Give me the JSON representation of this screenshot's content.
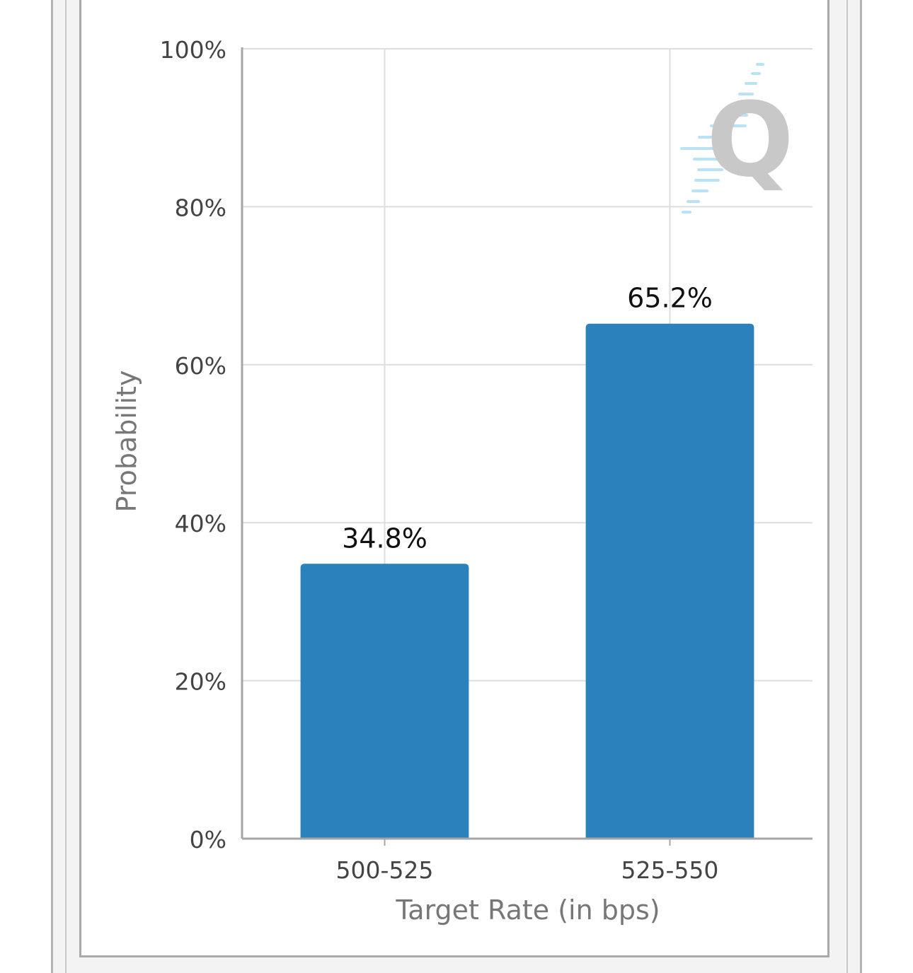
{
  "chart_data": {
    "type": "bar",
    "title": "",
    "xlabel": "Target Rate (in bps)",
    "ylabel": "Probability",
    "categories": [
      "500-525",
      "525-550"
    ],
    "values": [
      34.8,
      65.2
    ],
    "value_labels": [
      "34.8%",
      "65.2%"
    ],
    "ylim": [
      0,
      100
    ],
    "yticks": [
      0,
      20,
      40,
      60,
      80,
      100
    ],
    "ytick_labels": [
      "0%",
      "20%",
      "40%",
      "60%",
      "80%",
      "100%"
    ],
    "grid": true,
    "legend": "none"
  },
  "colors": {
    "bar": "#2a81bb",
    "grid": "#dddddd",
    "axis": "#a6a6a6",
    "tick_text": "#444444",
    "axis_title": "#777777",
    "value_text": "#111111",
    "watermark_q": "#c8c8c8",
    "watermark_lines": "#a6dcf6"
  },
  "watermark": {
    "icon": "q-logo-icon",
    "letter": "Q"
  }
}
